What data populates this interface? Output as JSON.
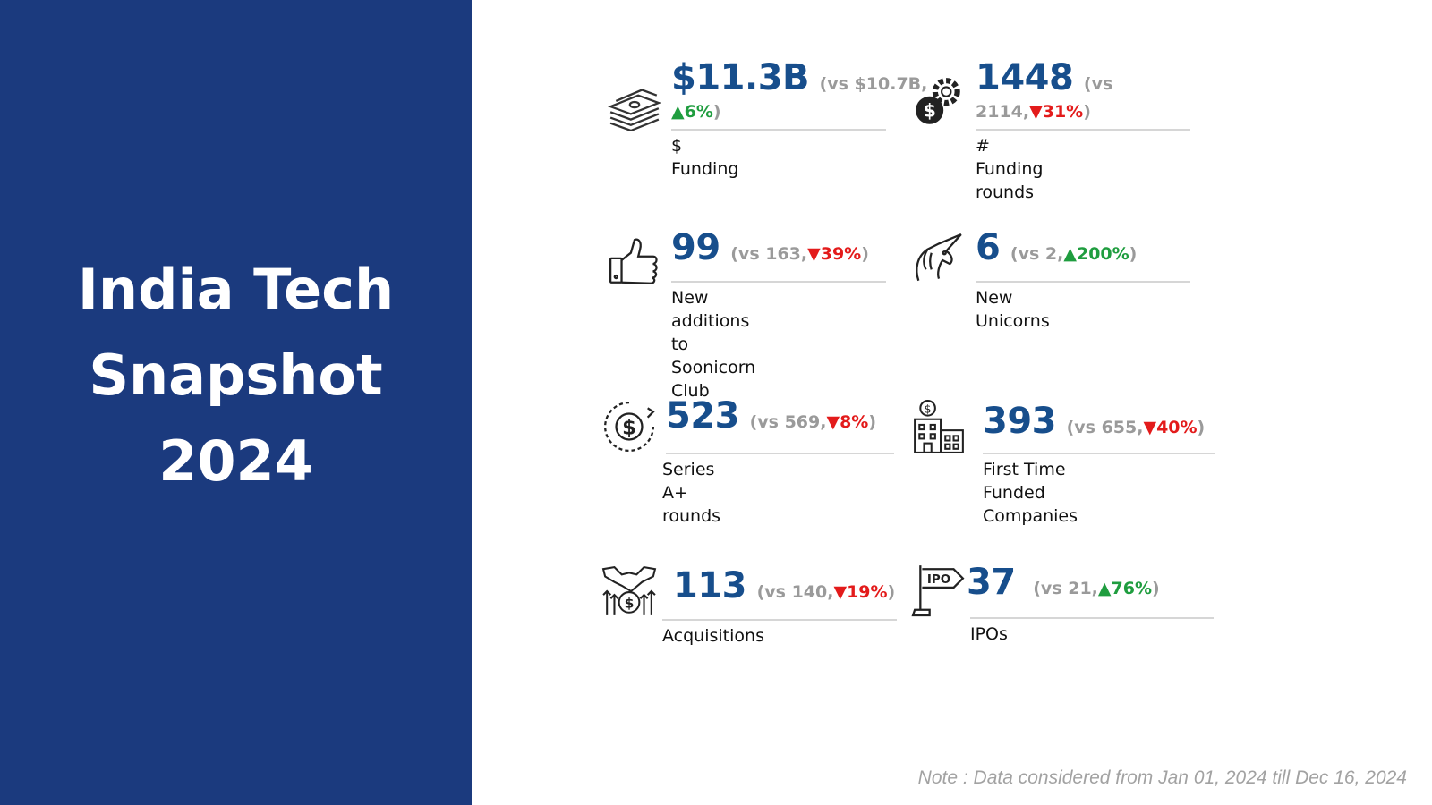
{
  "title": {
    "line1": "India Tech",
    "line2": "Snapshot",
    "line3": "2024"
  },
  "stats": [
    {
      "key": "funding",
      "icon": "money-stack-icon",
      "value": "$11.3B",
      "cmp_a": "(vs $10.7B,",
      "cmp_b": "▲6%",
      "cmp_c": ")",
      "trend": "up",
      "label": "$ Funding",
      "label2": ""
    },
    {
      "key": "rounds",
      "icon": "dollar-gear-icon",
      "value": "1448",
      "cmp_a": "(vs",
      "cmp_b2": "2114,",
      "cmp_b": "▼31%",
      "cmp_c": ")",
      "trend": "down",
      "label": "# Funding rounds",
      "label2": ""
    },
    {
      "key": "soonicorn",
      "icon": "thumbs-up-icon",
      "value": "99",
      "cmp_a": "(vs 163,",
      "cmp_b": "▼39%",
      "cmp_c": ")",
      "trend": "down",
      "label": "New additions to",
      "label2": "Soonicorn Club"
    },
    {
      "key": "unicorns",
      "icon": "unicorn-icon",
      "value": "6",
      "cmp_a": "(vs 2,",
      "cmp_b": "▲200%",
      "cmp_c": ")",
      "trend": "up",
      "label": "New Unicorns",
      "label2": ""
    },
    {
      "key": "seriesa",
      "icon": "dollar-cycle-icon",
      "value": "523",
      "cmp_a": "(vs 569,",
      "cmp_b": "▼8%",
      "cmp_c": ")",
      "trend": "down",
      "label": "Series A+ rounds",
      "label2": ""
    },
    {
      "key": "firsttime",
      "icon": "building-dollar-icon",
      "value": "393",
      "cmp_a": "(vs 655,",
      "cmp_b": "▼40%",
      "cmp_c": ")",
      "trend": "down",
      "label": "First Time Funded",
      "label2": "Companies"
    },
    {
      "key": "acq",
      "icon": "handshake-dollar-icon",
      "value": "113",
      "cmp_a": "(vs 140,",
      "cmp_b": "▼19%",
      "cmp_c": ")",
      "trend": "down",
      "label": "Acquisitions",
      "label2": ""
    },
    {
      "key": "ipo",
      "icon": "ipo-sign-icon",
      "value": "37",
      "cmp_a": "(vs 21,",
      "cmp_b": "▲76%",
      "cmp_c": ")",
      "trend": "up",
      "label": "IPOs",
      "label2": ""
    }
  ],
  "note": "Note : Data considered from Jan 01, 2024 till Dec 16, 2024",
  "colors": {
    "panel": "#1b3a7e",
    "value": "#174e8c",
    "up": "#1f9d3f",
    "down": "#e31b1b",
    "muted": "#9a9a9a"
  }
}
